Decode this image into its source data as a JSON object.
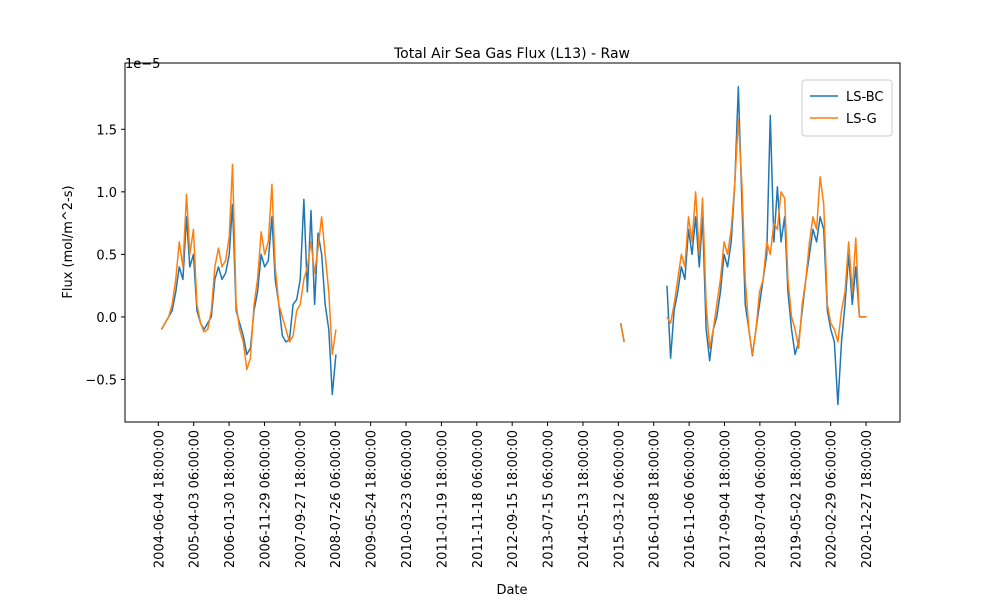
{
  "chart_data": {
    "type": "line",
    "title": "Total Air Sea Gas Flux (L13) - Raw",
    "xlabel": "Date",
    "ylabel": "Flux (mol/m^2-s)",
    "y_offset_text": "1e−5",
    "legend": "upper right",
    "xlim": [
      "2003-08-25",
      "2021-10-14"
    ],
    "xticks": [
      "2004-06-04 18:00:00",
      "2005-04-03 06:00:00",
      "2006-01-30 18:00:00",
      "2006-11-29 06:00:00",
      "2007-09-27 18:00:00",
      "2008-07-26 06:00:00",
      "2009-05-24 18:00:00",
      "2010-03-23 06:00:00",
      "2011-01-19 18:00:00",
      "2011-11-18 06:00:00",
      "2012-09-15 18:00:00",
      "2013-07-15 06:00:00",
      "2014-05-13 18:00:00",
      "2015-03-12 06:00:00",
      "2016-01-08 18:00:00",
      "2016-11-06 06:00:00",
      "2017-09-04 18:00:00",
      "2018-07-04 06:00:00",
      "2019-05-02 18:00:00",
      "2020-02-29 06:00:00",
      "2020-12-27 18:00:00"
    ],
    "ylim": [
      -8.4e-06,
      2.03e-05
    ],
    "yticks": [
      {
        "value": -5e-06,
        "label": "−0.5"
      },
      {
        "value": 0,
        "label": "0.0"
      },
      {
        "value": 5e-06,
        "label": "0.5"
      },
      {
        "value": 1e-05,
        "label": "1.0"
      },
      {
        "value": 1.5e-05,
        "label": "1.5"
      }
    ],
    "x": [
      "2004-07",
      "2004-08",
      "2004-09",
      "2004-10",
      "2004-11",
      "2004-12",
      "2005-01",
      "2005-02",
      "2005-03",
      "2005-04",
      "2005-05",
      "2005-06",
      "2005-07",
      "2005-08",
      "2005-09",
      "2005-10",
      "2005-11",
      "2005-12",
      "2006-01",
      "2006-02",
      "2006-03",
      "2006-04",
      "2006-05",
      "2006-06",
      "2006-07",
      "2006-08",
      "2006-09",
      "2006-10",
      "2006-11",
      "2006-12",
      "2007-01",
      "2007-02",
      "2007-03",
      "2007-04",
      "2007-05",
      "2007-06",
      "2007-07",
      "2007-08",
      "2007-09",
      "2007-10",
      "2007-11",
      "2007-12",
      "2008-01",
      "2008-02",
      "2008-03",
      "2008-04",
      "2008-05",
      "2008-06",
      "2008-07",
      "2008-08",
      "2012-01",
      "2015-04",
      "2015-05",
      "2015-10",
      "2016-05",
      "2016-06",
      "2016-07",
      "2016-08",
      "2016-09",
      "2016-10",
      "2016-11",
      "2016-12",
      "2017-01",
      "2017-02",
      "2017-03",
      "2017-04",
      "2017-05",
      "2017-06",
      "2017-07",
      "2017-08",
      "2017-09",
      "2017-10",
      "2017-11",
      "2017-12",
      "2018-01",
      "2018-02",
      "2018-03",
      "2018-04",
      "2018-05",
      "2018-06",
      "2018-07",
      "2018-08",
      "2018-09",
      "2018-10",
      "2018-11",
      "2018-12",
      "2019-01",
      "2019-02",
      "2019-03",
      "2019-04",
      "2019-05",
      "2019-06",
      "2019-07",
      "2019-08",
      "2019-09",
      "2019-10",
      "2019-11",
      "2019-12",
      "2020-01",
      "2020-02",
      "2020-03",
      "2020-04",
      "2020-05",
      "2020-06",
      "2020-07",
      "2020-08",
      "2020-09",
      "2020-10",
      "2020-11",
      "2020-12",
      "2021-01"
    ],
    "series": [
      {
        "name": "LS-BC",
        "color": "#1f77b4",
        "values": [
          -1e-06,
          -5e-07,
          0,
          5e-07,
          2e-06,
          4e-06,
          3e-06,
          8e-06,
          4e-06,
          5e-06,
          5e-07,
          -5e-07,
          -1e-06,
          -5e-07,
          0,
          3e-06,
          4e-06,
          3e-06,
          3.5e-06,
          5e-06,
          9e-06,
          5e-07,
          -5e-07,
          -1.5e-06,
          -3e-06,
          -2.5e-06,
          5e-07,
          2e-06,
          5e-06,
          4e-06,
          4.5e-06,
          8e-06,
          3e-06,
          1e-06,
          -1.5e-06,
          -2e-06,
          -1.8e-06,
          1e-06,
          1.4e-06,
          3e-06,
          9.4e-06,
          2e-06,
          8.5e-06,
          1e-06,
          6.7e-06,
          5e-06,
          1e-06,
          -1e-06,
          -6.2e-06,
          -3e-06,
          null,
          -5e-07,
          -2e-06,
          null,
          2.5e-06,
          -3.3e-06,
          5e-07,
          2e-06,
          4e-06,
          3e-06,
          7e-06,
          5e-06,
          8e-06,
          4e-06,
          8e-06,
          -1e-06,
          -3.5e-06,
          -1e-06,
          0,
          2e-06,
          5e-06,
          4e-06,
          6e-06,
          1.05e-05,
          1.84e-05,
          9e-06,
          1e-06,
          -1e-06,
          -3.1e-06,
          -1e-06,
          1e-06,
          3e-06,
          5e-06,
          1.61e-05,
          6e-06,
          1.04e-05,
          6e-06,
          8e-06,
          2e-06,
          -1e-06,
          -3e-06,
          -2e-06,
          5e-07,
          3e-06,
          5e-06,
          7e-06,
          6e-06,
          8e-06,
          7e-06,
          5e-07,
          -1e-06,
          -2e-06,
          -7e-06,
          -2e-06,
          1e-06,
          5e-06,
          1e-06,
          4e-06,
          0,
          0,
          0
        ]
      },
      {
        "name": "LS-G",
        "color": "#ff7f0e",
        "values": [
          -1e-06,
          -5e-07,
          0,
          1e-06,
          3e-06,
          6e-06,
          4e-06,
          9.8e-06,
          5e-06,
          7e-06,
          1e-06,
          -5e-07,
          -1.2e-06,
          -1e-06,
          5e-07,
          4e-06,
          5.5e-06,
          4e-06,
          4.5e-06,
          6.4e-06,
          1.22e-05,
          1e-06,
          -1e-06,
          -2e-06,
          -4.2e-06,
          -3.3e-06,
          1e-06,
          3e-06,
          6.8e-06,
          5e-06,
          6e-06,
          1.06e-05,
          4e-06,
          1e-06,
          0,
          -1e-06,
          -2e-06,
          -1.5e-06,
          5e-07,
          1e-06,
          3e-06,
          4e-06,
          6e-06,
          3.5e-06,
          5.5e-06,
          8e-06,
          5e-06,
          2e-06,
          -3e-06,
          -1e-06,
          null,
          -5e-07,
          -2e-06,
          null,
          0,
          -5e-07,
          1e-06,
          3e-06,
          5e-06,
          4e-06,
          8e-06,
          6e-06,
          1e-05,
          5e-06,
          9.5e-06,
          1e-06,
          -2.5e-06,
          -1e-06,
          1e-06,
          3e-06,
          6e-06,
          5e-06,
          7e-06,
          1.06e-05,
          1.58e-05,
          1.05e-05,
          3e-06,
          -1e-06,
          -3e-06,
          -1e-06,
          2e-06,
          3e-06,
          6e-06,
          5e-06,
          7.5e-06,
          7e-06,
          1e-05,
          9.5e-06,
          3e-06,
          0,
          -1e-06,
          -2.5e-06,
          1e-06,
          3e-06,
          6e-06,
          8e-06,
          7e-06,
          1.12e-05,
          9e-06,
          1e-06,
          -5e-07,
          -1e-06,
          -2e-06,
          5e-07,
          2e-06,
          6e-06,
          2e-06,
          6.3e-06,
          0,
          0,
          0
        ]
      }
    ]
  }
}
